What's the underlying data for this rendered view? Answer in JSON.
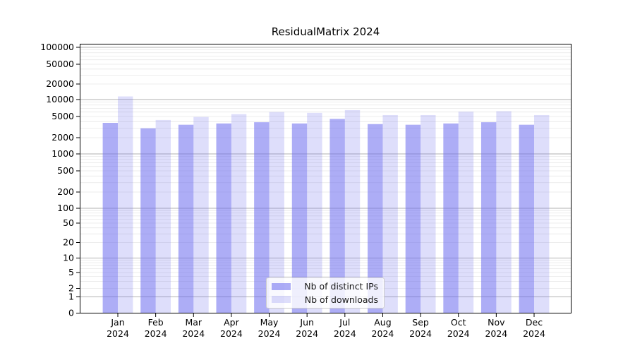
{
  "figure": {
    "title": "ResidualMatrix 2024",
    "background_color": "#ffffff"
  },
  "chart_data": {
    "type": "bar",
    "title": "ResidualMatrix 2024",
    "categories": [
      "Jan 2024",
      "Feb 2024",
      "Mar 2024",
      "Apr 2024",
      "May 2024",
      "Jun 2024",
      "Jul 2024",
      "Aug 2024",
      "Sep 2024",
      "Oct 2024",
      "Nov 2024",
      "Dec 2024"
    ],
    "series": [
      {
        "name": "Nb of distinct IPs",
        "color": "rgba(106,106,238,0.55)",
        "values": [
          3800,
          3000,
          3500,
          3700,
          3900,
          3700,
          4500,
          3600,
          3500,
          3700,
          3900,
          3500
        ]
      },
      {
        "name": "Nb of downloads",
        "color": "rgba(106,106,238,0.22)",
        "values": [
          11500,
          4300,
          4900,
          5500,
          6000,
          5800,
          6500,
          5300,
          5300,
          6100,
          6200,
          5300
        ]
      }
    ],
    "xlabel": "",
    "ylabel": "",
    "yscale": "asinh-log",
    "ylim": [
      0,
      100000
    ],
    "ytick_values": [
      0,
      1,
      2,
      5,
      10,
      20,
      50,
      100,
      200,
      500,
      1000,
      2000,
      5000,
      10000,
      20000,
      50000,
      100000
    ],
    "ytick_labels": [
      "0",
      "1",
      "2",
      "5",
      "10",
      "20",
      "50",
      "100",
      "200",
      "500",
      "1000",
      "2000",
      "5000",
      "10000",
      "20000",
      "50000",
      "100000"
    ],
    "grid": "horizontal major+minor",
    "legend_position": "lower center",
    "colors": {
      "major_grid": "#b2b2b2",
      "minor_grid": "#e7e7e7",
      "spine": "#000000",
      "text": "#000000"
    }
  }
}
